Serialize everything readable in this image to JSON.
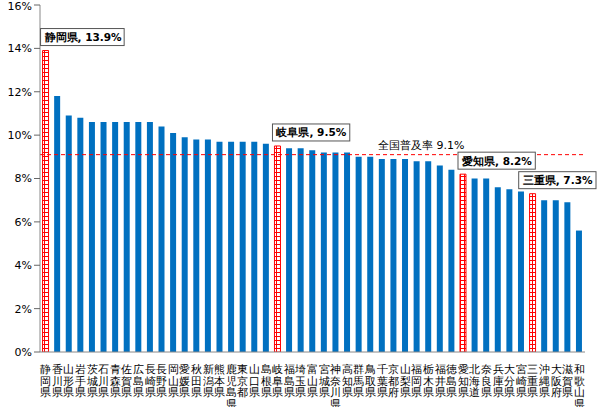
{
  "chart_data": {
    "type": "bar",
    "categories": [
      "静岡県",
      "香川県",
      "山形県",
      "岩手県",
      "茨城県",
      "石川県",
      "青森県",
      "佐賀県",
      "広島県",
      "長崎県",
      "長野県",
      "岡山県",
      "愛媛県",
      "秋田県",
      "新潟県",
      "熊本県",
      "鹿児島県",
      "東京都",
      "山口県",
      "島根県",
      "岐阜県",
      "福島県",
      "埼玉県",
      "富山県",
      "宮城県",
      "神奈川県",
      "高知県",
      "群馬県",
      "鳥取県",
      "千葉県",
      "京都府",
      "山梨県",
      "福岡県",
      "栃木県",
      "福井県",
      "徳島県",
      "愛知県",
      "北海道",
      "奈良県",
      "兵庫県",
      "大分県",
      "宮崎県",
      "三重県",
      "沖縄県",
      "大阪府",
      "滋賀県",
      "和歌山県"
    ],
    "values": [
      13.9,
      11.8,
      10.9,
      10.8,
      10.6,
      10.6,
      10.6,
      10.6,
      10.6,
      10.6,
      10.4,
      10.1,
      9.9,
      9.8,
      9.8,
      9.7,
      9.7,
      9.7,
      9.7,
      9.6,
      9.5,
      9.4,
      9.4,
      9.3,
      9.2,
      9.2,
      9.2,
      9.0,
      9.0,
      8.9,
      8.9,
      8.9,
      8.8,
      8.8,
      8.6,
      8.4,
      8.2,
      8.0,
      8.0,
      7.6,
      7.5,
      7.4,
      7.3,
      7.0,
      7.0,
      6.9,
      5.6
    ],
    "color": "#0070c0",
    "colors": [
      "#ff0000",
      "#0070c0",
      "#0070c0",
      "#0070c0",
      "#0070c0",
      "#0070c0",
      "#0070c0",
      "#0070c0",
      "#0070c0",
      "#0070c0",
      "#0070c0",
      "#0070c0",
      "#0070c0",
      "#0070c0",
      "#0070c0",
      "#0070c0",
      "#0070c0",
      "#0070c0",
      "#0070c0",
      "#0070c0",
      "#ff0000",
      "#0070c0",
      "#0070c0",
      "#0070c0",
      "#0070c0",
      "#0070c0",
      "#0070c0",
      "#0070c0",
      "#0070c0",
      "#0070c0",
      "#0070c0",
      "#0070c0",
      "#0070c0",
      "#0070c0",
      "#0070c0",
      "#0070c0",
      "#ff0000",
      "#0070c0",
      "#0070c0",
      "#0070c0",
      "#0070c0",
      "#0070c0",
      "#ff0000",
      "#0070c0",
      "#0070c0",
      "#0070c0",
      "#0070c0"
    ],
    "ylim": [
      0,
      16
    ],
    "yticks": [
      {
        "value": 0,
        "label": "0%"
      },
      {
        "value": 2,
        "label": "2%"
      },
      {
        "value": 4,
        "label": "4%"
      },
      {
        "value": 6,
        "label": "6%"
      },
      {
        "value": 8,
        "label": "8%"
      },
      {
        "value": 10,
        "label": "10%"
      },
      {
        "value": 12,
        "label": "12%"
      },
      {
        "value": 14,
        "label": "14%"
      },
      {
        "value": 16,
        "label": "16%"
      }
    ],
    "grid": false,
    "reference_line": {
      "value": 9.1,
      "label": "全国普及率 9.1%",
      "color": "#ff0000"
    },
    "annotations": [
      {
        "text": "静岡県, 13.9%",
        "category": "静岡県"
      },
      {
        "text": "岐阜県, 9.5%",
        "category": "岐阜県"
      },
      {
        "text": "愛知県, 8.2%",
        "category": "愛知県"
      },
      {
        "text": "三重県, 7.3%",
        "category": "三重県"
      }
    ]
  }
}
